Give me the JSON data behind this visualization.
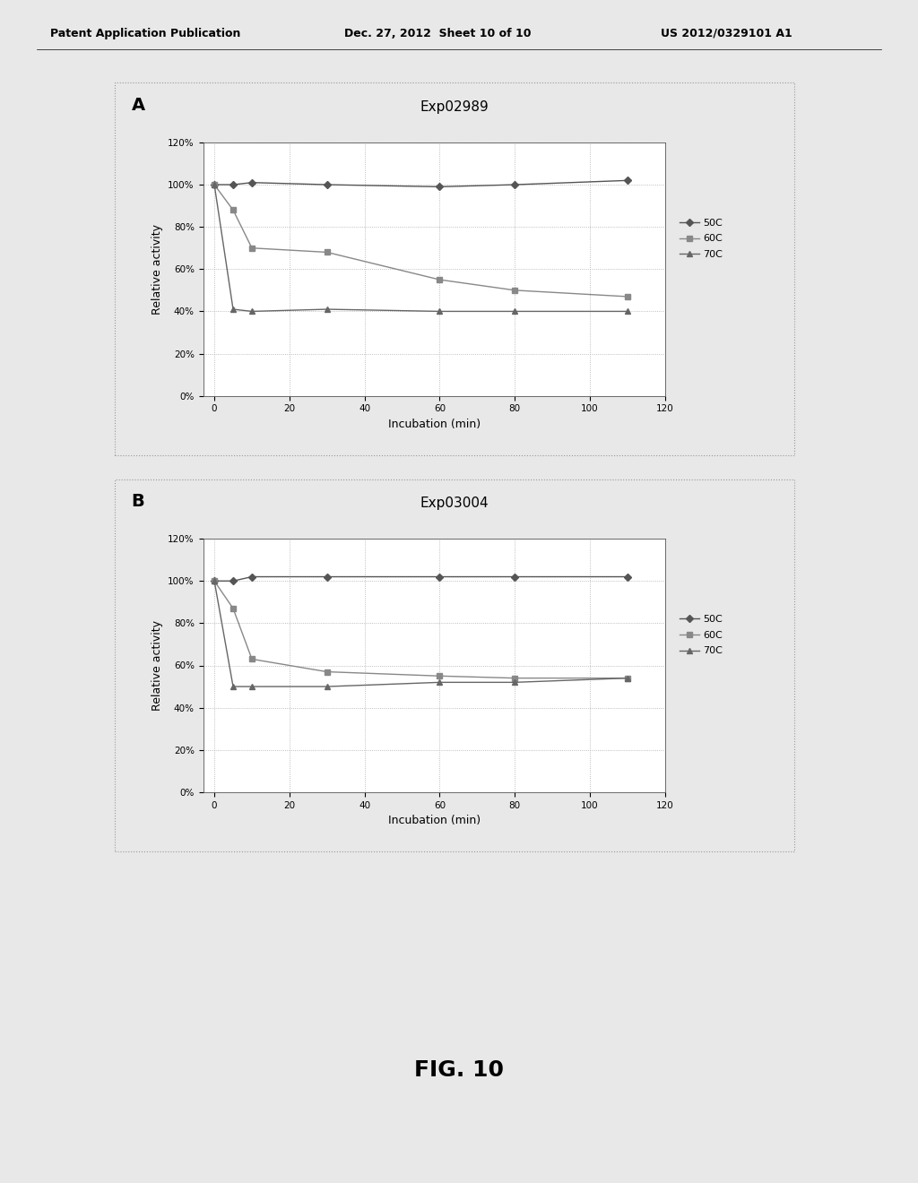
{
  "chart_A": {
    "title": "Exp02989",
    "label": "A",
    "series_order": [
      "50C",
      "60C",
      "70C"
    ],
    "series": {
      "50C": {
        "x": [
          0,
          5,
          10,
          30,
          60,
          80,
          110
        ],
        "y": [
          1.0,
          1.0,
          1.01,
          1.0,
          0.99,
          1.0,
          1.02
        ],
        "color": "#555555",
        "marker": "D",
        "label": "50C"
      },
      "60C": {
        "x": [
          0,
          5,
          10,
          30,
          60,
          80,
          110
        ],
        "y": [
          1.0,
          0.88,
          0.7,
          0.68,
          0.55,
          0.5,
          0.47
        ],
        "color": "#888888",
        "marker": "s",
        "label": "60C"
      },
      "70C": {
        "x": [
          0,
          5,
          10,
          30,
          60,
          80,
          110
        ],
        "y": [
          1.0,
          0.41,
          0.4,
          0.41,
          0.4,
          0.4,
          0.4
        ],
        "color": "#666666",
        "marker": "^",
        "label": "70C"
      }
    }
  },
  "chart_B": {
    "title": "Exp03004",
    "label": "B",
    "series_order": [
      "50C",
      "60C",
      "70C"
    ],
    "series": {
      "50C": {
        "x": [
          0,
          5,
          10,
          30,
          60,
          80,
          110
        ],
        "y": [
          1.0,
          1.0,
          1.02,
          1.02,
          1.02,
          1.02,
          1.02
        ],
        "color": "#555555",
        "marker": "D",
        "label": "50C"
      },
      "60C": {
        "x": [
          0,
          5,
          10,
          30,
          60,
          80,
          110
        ],
        "y": [
          1.0,
          0.87,
          0.63,
          0.57,
          0.55,
          0.54,
          0.54
        ],
        "color": "#888888",
        "marker": "s",
        "label": "60C"
      },
      "70C": {
        "x": [
          0,
          5,
          10,
          30,
          60,
          80,
          110
        ],
        "y": [
          1.0,
          0.5,
          0.5,
          0.5,
          0.52,
          0.52,
          0.54
        ],
        "color": "#666666",
        "marker": "^",
        "label": "70C"
      }
    }
  },
  "xlabel": "Incubation (min)",
  "ylabel": "Relative activity",
  "xlim": [
    -3,
    118
  ],
  "ylim": [
    0.0,
    1.2
  ],
  "yticks": [
    0.0,
    0.2,
    0.4,
    0.6,
    0.8,
    1.0,
    1.2
  ],
  "ytick_labels": [
    "0%",
    "20%",
    "40%",
    "60%",
    "80%",
    "100%",
    "120%"
  ],
  "xticks": [
    0,
    20,
    40,
    60,
    80,
    100,
    120
  ],
  "fig_label": "FIG. 10",
  "header_left": "Patent Application Publication",
  "header_mid": "Dec. 27, 2012  Sheet 10 of 10",
  "header_right": "US 2012/0329101 A1",
  "bg_color": "#e8e8e8",
  "plot_bg_color": "#ffffff",
  "panel_bg_color": "#e8e8e8",
  "border_color": "#999999",
  "grid_color": "#aaaaaa",
  "grid_style": ":"
}
